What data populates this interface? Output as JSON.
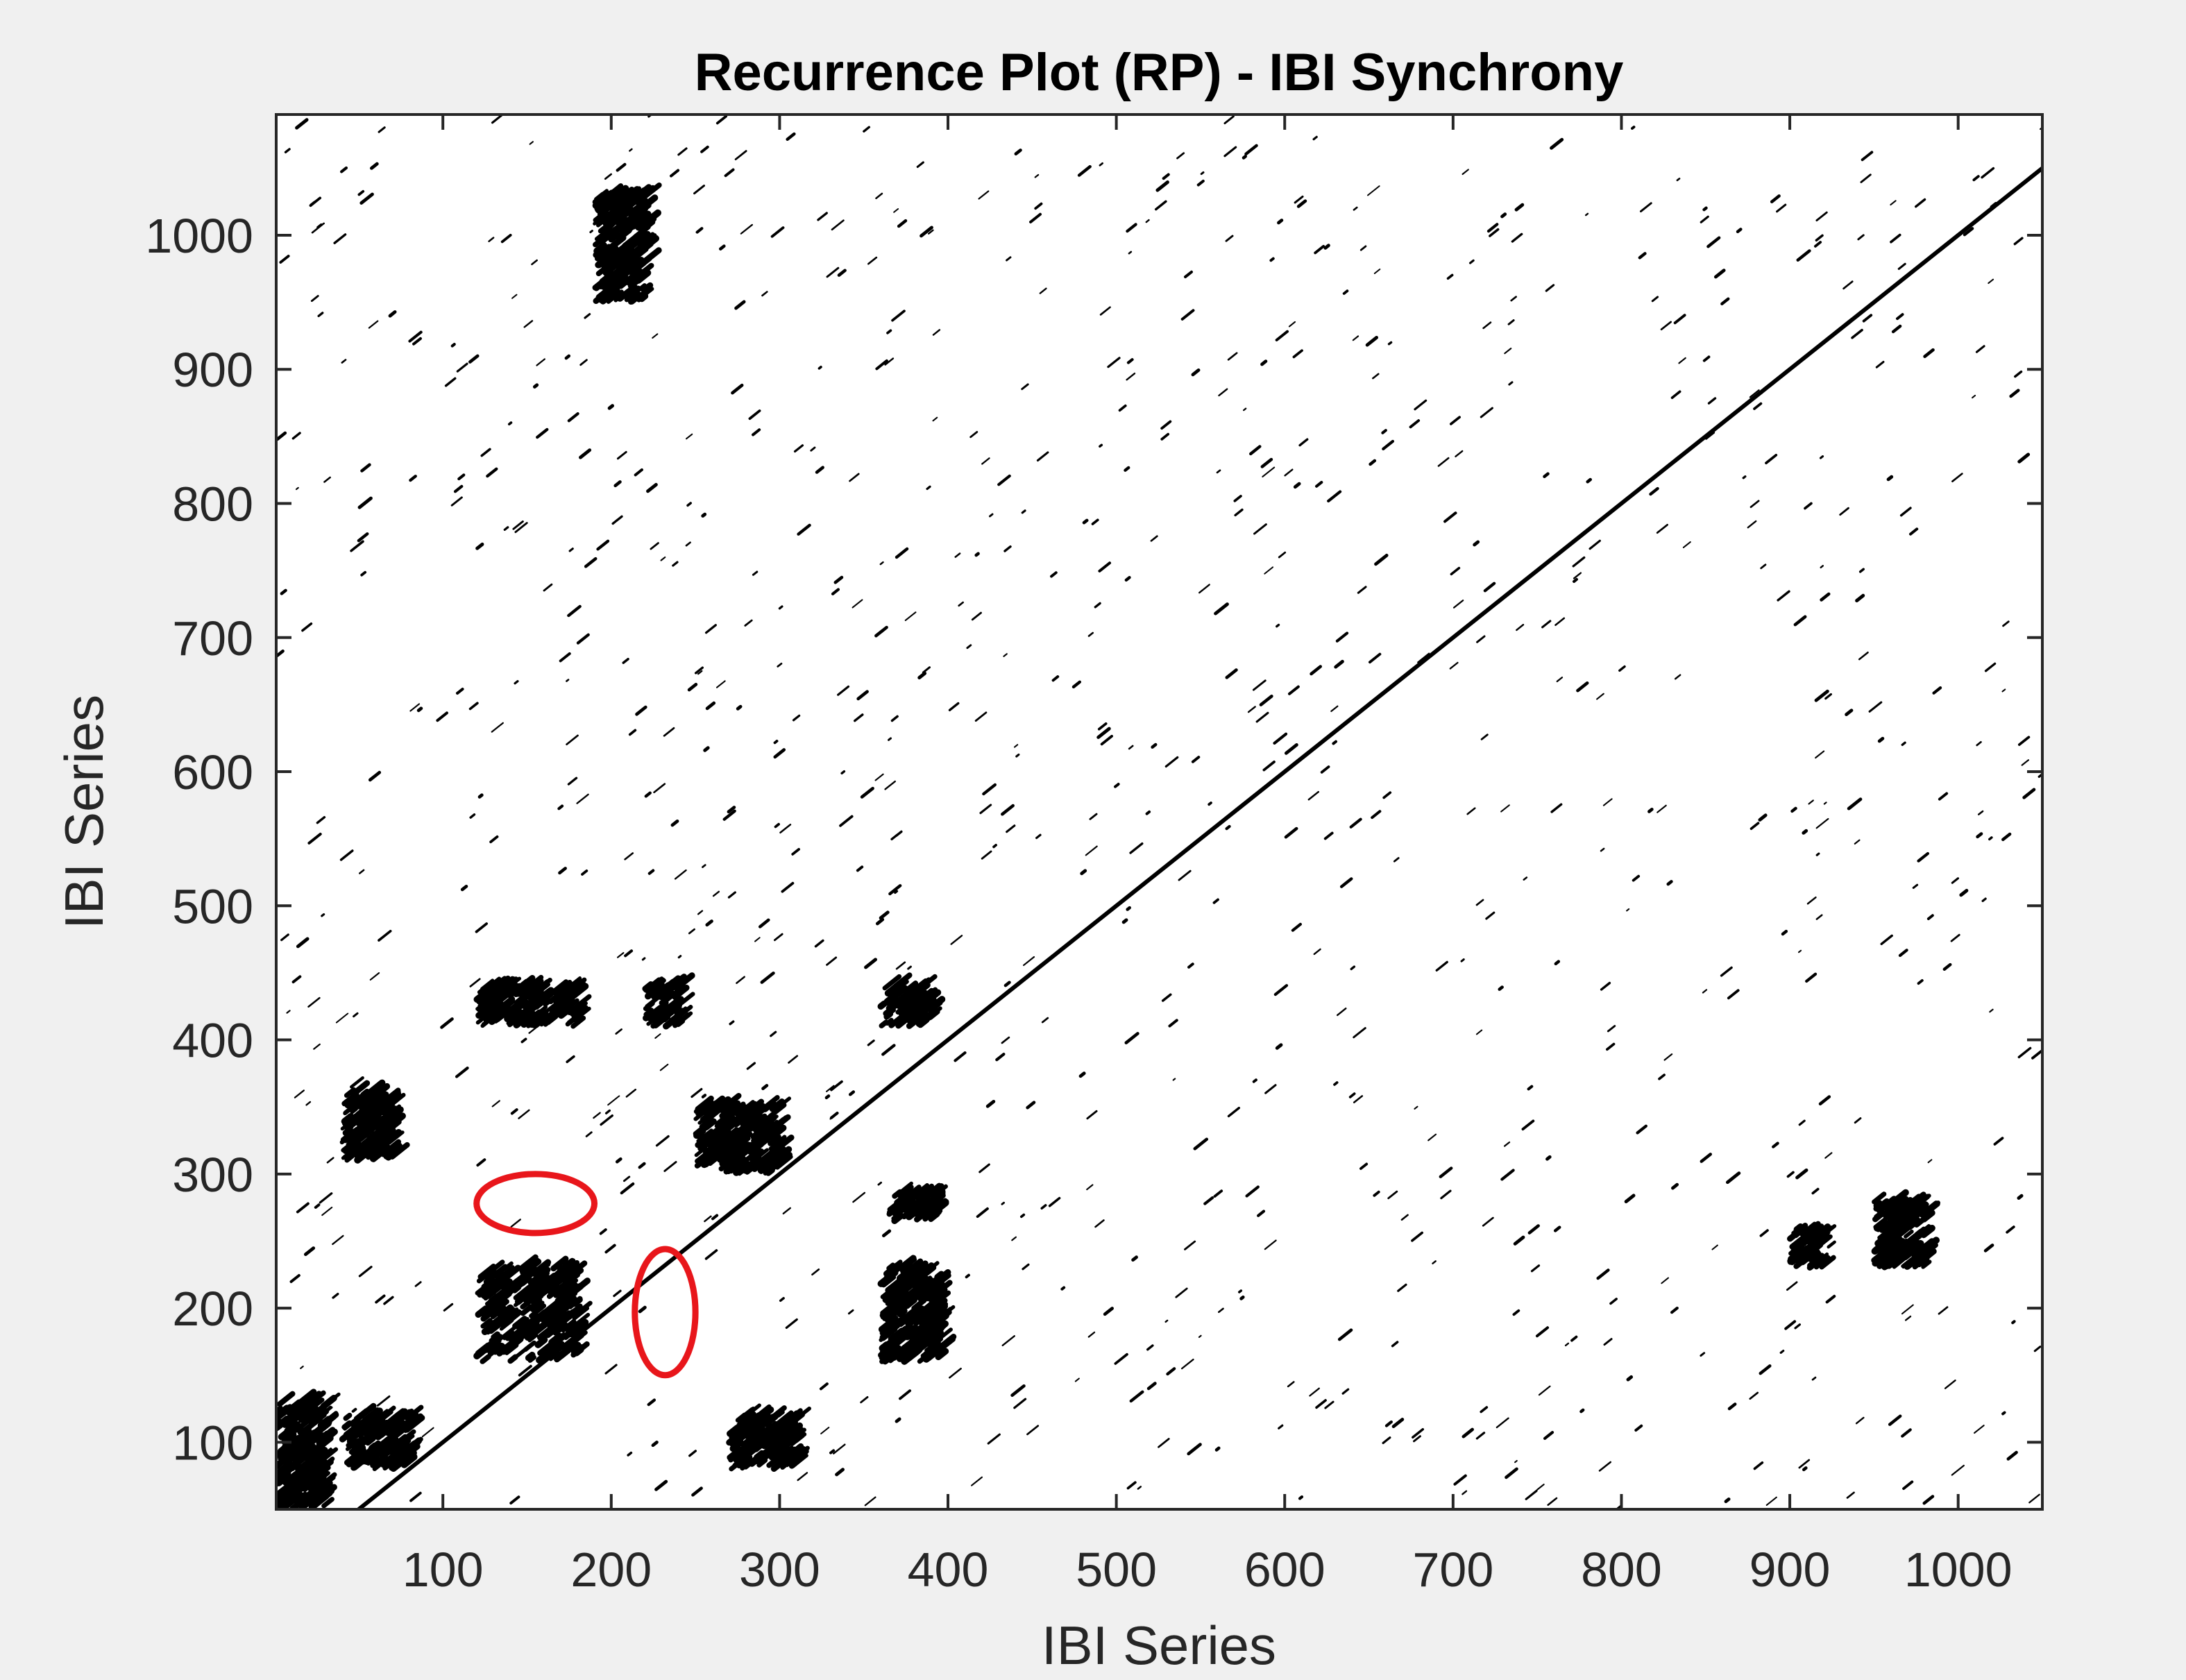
{
  "chart_data": {
    "type": "recurrence-plot",
    "title": "Recurrence Plot (RP) - IBI Synchrony",
    "xlabel": "IBI Series",
    "ylabel": "IBI Series",
    "xlim": [
      1,
      1050
    ],
    "ylim": [
      50,
      1090
    ],
    "x_ticks": [
      100,
      200,
      300,
      400,
      500,
      600,
      700,
      800,
      900,
      1000
    ],
    "y_ticks": [
      100,
      200,
      300,
      400,
      500,
      600,
      700,
      800,
      900,
      1000
    ],
    "x_tick_labels": [
      "100",
      "200",
      "300",
      "400",
      "500",
      "600",
      "700",
      "800",
      "900",
      "1000"
    ],
    "y_tick_labels": [
      "100",
      "200",
      "300",
      "400",
      "500",
      "600",
      "700",
      "800",
      "900",
      "1000"
    ],
    "grid": false,
    "recurrence_color": "#000000",
    "background_color": "#ffffff",
    "figure_color": "#f0f0f0",
    "line_of_identity": true,
    "dense_regions": [
      {
        "x": [
          0,
          30
        ],
        "y": [
          50,
          130
        ]
      },
      {
        "x": [
          40,
          80
        ],
        "y": [
          80,
          120
        ]
      },
      {
        "x": [
          120,
          180
        ],
        "y": [
          160,
          230
        ]
      },
      {
        "x": [
          120,
          180
        ],
        "y": [
          410,
          440
        ]
      },
      {
        "x": [
          40,
          70
        ],
        "y": [
          310,
          360
        ]
      },
      {
        "x": [
          270,
          310
        ],
        "y": [
          80,
          120
        ]
      },
      {
        "x": [
          360,
          395
        ],
        "y": [
          160,
          230
        ]
      },
      {
        "x": [
          365,
          395
        ],
        "y": [
          265,
          285
        ]
      },
      {
        "x": [
          220,
          240
        ],
        "y": [
          410,
          440
        ]
      },
      {
        "x": [
          250,
          300
        ],
        "y": [
          300,
          350
        ]
      },
      {
        "x": [
          360,
          390
        ],
        "y": [
          410,
          440
        ]
      },
      {
        "x": [
          190,
          220
        ],
        "y": [
          950,
          1030
        ]
      },
      {
        "x": [
          950,
          980
        ],
        "y": [
          230,
          280
        ]
      },
      {
        "x": [
          900,
          920
        ],
        "y": [
          230,
          260
        ]
      }
    ],
    "annotations": [
      {
        "shape": "ellipse",
        "color": "#e8161b",
        "center": [
          155,
          278
        ],
        "radius": [
          35,
          22
        ]
      },
      {
        "shape": "ellipse",
        "color": "#e8161b",
        "center": [
          232,
          197
        ],
        "radius": [
          18,
          47
        ]
      }
    ]
  }
}
